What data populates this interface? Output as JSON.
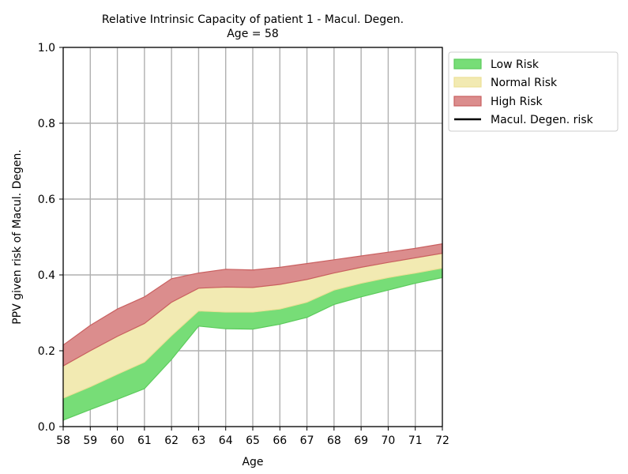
{
  "chart_data": {
    "type": "area",
    "title": "Relative Intrinsic Capacity of patient 1 - Macul. Degen.",
    "subtitle": "Age = 58",
    "xlabel": "Age",
    "ylabel": "PPV given risk of Macul. Degen.",
    "xlim": [
      58,
      72
    ],
    "ylim": [
      0.0,
      1.0
    ],
    "grid": true,
    "legend_position": "outside-top-right",
    "x": [
      58,
      59,
      60,
      61,
      62,
      63,
      64,
      65,
      66,
      67,
      68,
      69,
      70,
      71,
      72
    ],
    "x_tick_labels": [
      "58",
      "59",
      "60",
      "61",
      "62",
      "63",
      "64",
      "65",
      "66",
      "67",
      "68",
      "69",
      "70",
      "71",
      "72"
    ],
    "y_ticks": [
      0.0,
      0.2,
      0.4,
      0.6,
      0.8,
      1.0
    ],
    "y_tick_labels": [
      "0.0",
      "0.2",
      "0.4",
      "0.6",
      "0.8",
      "1.0"
    ],
    "bands": {
      "lower": [
        0.017,
        0.045,
        0.072,
        0.1,
        0.177,
        0.265,
        0.258,
        0.257,
        0.27,
        0.288,
        0.322,
        0.342,
        0.36,
        0.378,
        0.393
      ],
      "low_top": [
        0.075,
        0.105,
        0.138,
        0.17,
        0.24,
        0.305,
        0.302,
        0.302,
        0.31,
        0.328,
        0.36,
        0.378,
        0.393,
        0.405,
        0.418
      ],
      "norm_top": [
        0.16,
        0.2,
        0.238,
        0.272,
        0.328,
        0.365,
        0.368,
        0.367,
        0.375,
        0.388,
        0.405,
        0.42,
        0.433,
        0.445,
        0.457
      ],
      "high_top": [
        0.215,
        0.267,
        0.31,
        0.342,
        0.39,
        0.405,
        0.415,
        0.413,
        0.42,
        0.43,
        0.44,
        0.45,
        0.46,
        0.47,
        0.482
      ]
    },
    "series": [
      {
        "name": "Low Risk",
        "fill": "#77dd77",
        "edge": "#5ccb5c",
        "lower_key": "lower",
        "upper_key": "low_top"
      },
      {
        "name": "Normal Risk",
        "fill": "#f2eab2",
        "edge": "#ece096",
        "lower_key": "low_top",
        "upper_key": "norm_top"
      },
      {
        "name": "High Risk",
        "fill": "#db8d8d",
        "edge": "#c96060",
        "lower_key": "norm_top",
        "upper_key": "high_top"
      }
    ],
    "legend": [
      {
        "label": "Low Risk",
        "kind": "patch",
        "fill": "#77dd77",
        "edge": "#5ccb5c"
      },
      {
        "label": "Normal Risk",
        "kind": "patch",
        "fill": "#f2eab2",
        "edge": "#ece096"
      },
      {
        "label": "High Risk",
        "kind": "patch",
        "fill": "#db8d8d",
        "edge": "#c96060"
      },
      {
        "label": "Macul. Degen. risk",
        "kind": "line",
        "color": "#000000"
      }
    ]
  }
}
